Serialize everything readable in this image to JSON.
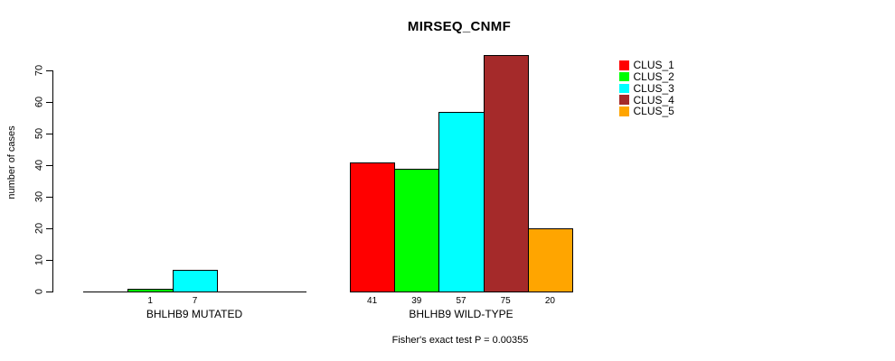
{
  "chart_data": {
    "type": "bar",
    "title": "MIRSEQ_CNMF",
    "ylabel": "number of cases",
    "xlabel": "",
    "ylim": [
      0,
      70
    ],
    "yticks": [
      0,
      10,
      20,
      30,
      40,
      50,
      60,
      70
    ],
    "grid": false,
    "legend_position": "right",
    "clusters": [
      {
        "name": "CLUS_1",
        "color": "#FF0000"
      },
      {
        "name": "CLUS_2",
        "color": "#00FF00"
      },
      {
        "name": "CLUS_3",
        "color": "#00FFFF"
      },
      {
        "name": "CLUS_4",
        "color": "#A52A2A"
      },
      {
        "name": "CLUS_5",
        "color": "#FFA500"
      }
    ],
    "groups": [
      {
        "label": "BHLHB9 MUTATED",
        "values": [
          0,
          1,
          7,
          0,
          0
        ],
        "bar_labels": [
          "",
          "1",
          "7",
          "",
          ""
        ]
      },
      {
        "label": "BHLHB9 WILD-TYPE",
        "values": [
          41,
          39,
          57,
          75,
          20
        ],
        "bar_labels": [
          "41",
          "39",
          "57",
          "75",
          "20"
        ]
      }
    ],
    "annotation": "Fisher's exact test P = 0.00355"
  }
}
